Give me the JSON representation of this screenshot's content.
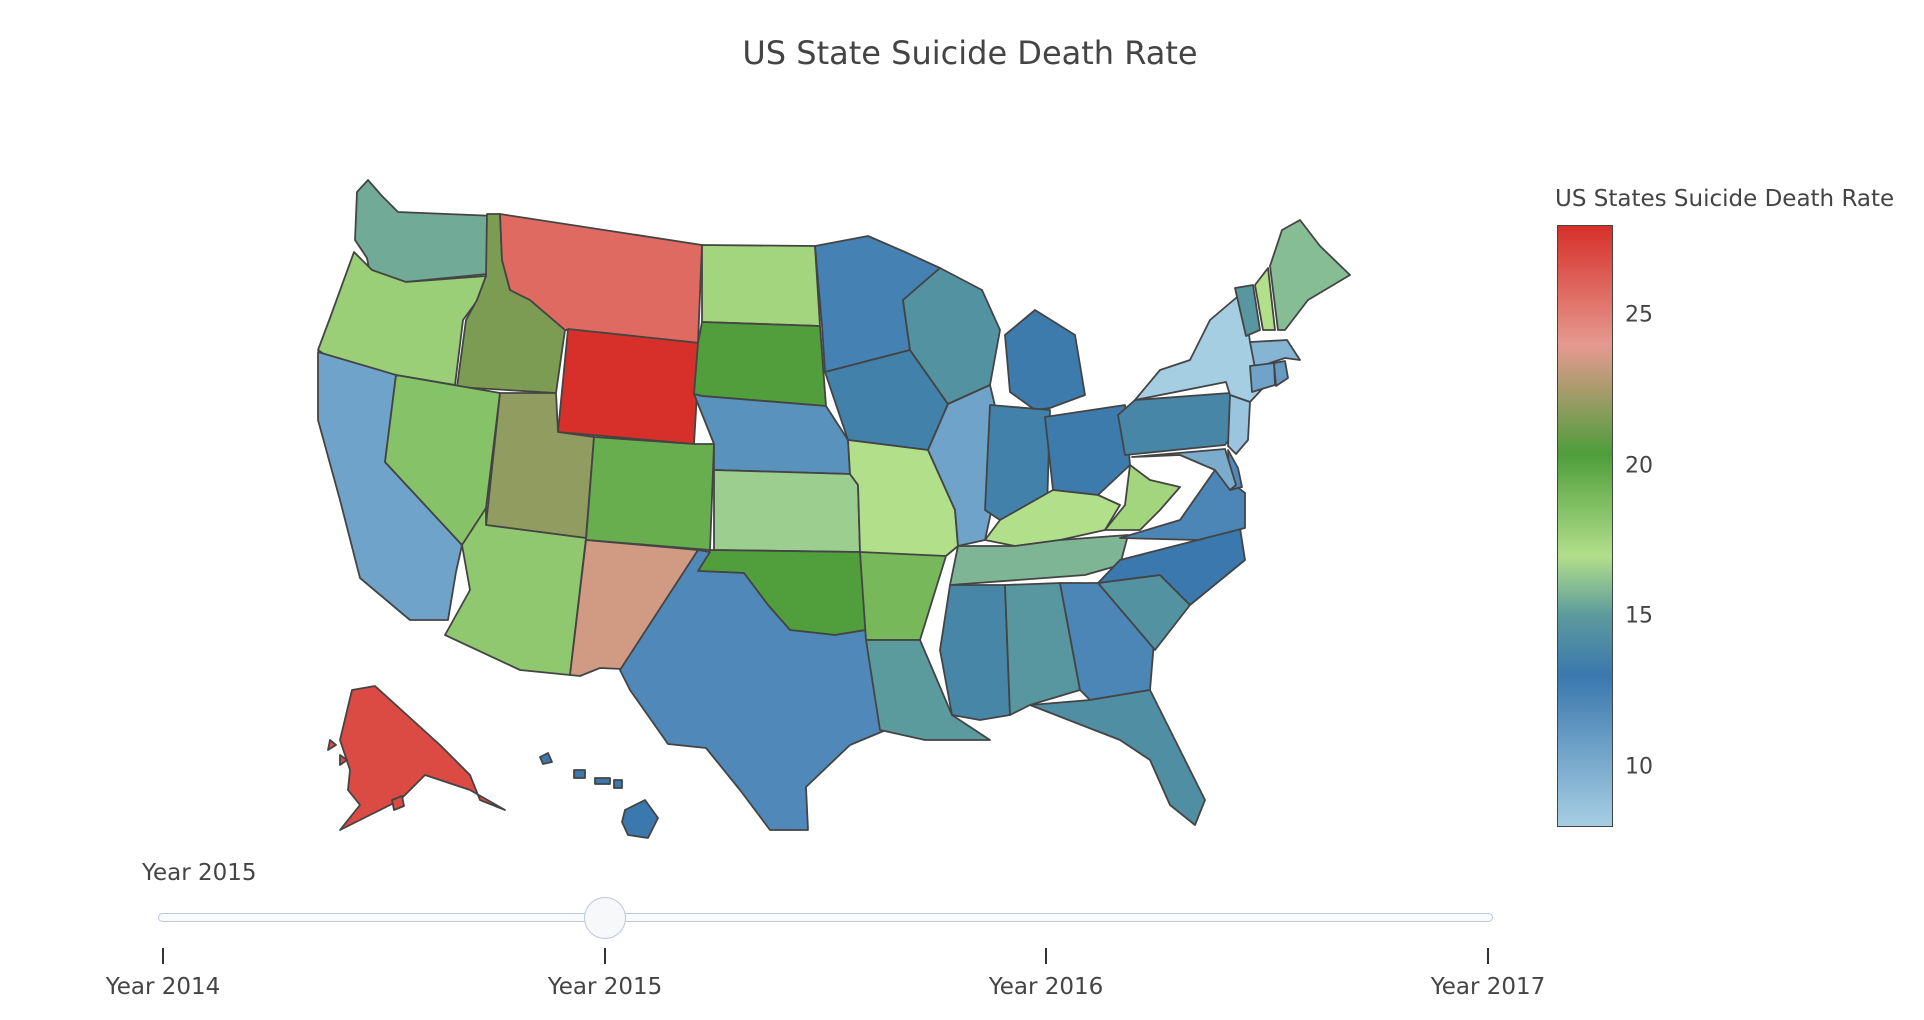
{
  "title": "US State Suicide Death Rate",
  "colorbar": {
    "title": "US States Suicide Death Rate",
    "range": [
      8,
      28
    ],
    "ticks": [
      "10",
      "15",
      "20",
      "25"
    ],
    "colorscale": [
      [
        0.0,
        "#a6cee3"
      ],
      [
        0.25,
        "#3a78ae"
      ],
      [
        0.35,
        "#5b9a9d"
      ],
      [
        0.45,
        "#b2df8a"
      ],
      [
        0.62,
        "#4e9d3a"
      ],
      [
        0.8,
        "#e59a8f"
      ],
      [
        1.0,
        "#d7302a"
      ]
    ]
  },
  "slider": {
    "current_label": "Year 2015",
    "active_index": 1,
    "steps": [
      "Year 2014",
      "Year 2015",
      "Year 2016",
      "Year 2017"
    ]
  },
  "chart_data": {
    "type": "choropleth",
    "title": "US State Suicide Death Rate",
    "year": "Year 2015",
    "states": [
      {
        "state": "WA",
        "value": 15.5
      },
      {
        "state": "OR",
        "value": 17.8
      },
      {
        "state": "CA",
        "value": 10.5
      },
      {
        "state": "ID",
        "value": 21.5
      },
      {
        "state": "NV",
        "value": 18.5
      },
      {
        "state": "MT",
        "value": 25.8
      },
      {
        "state": "WY",
        "value": 28.0
      },
      {
        "state": "UT",
        "value": 22.0
      },
      {
        "state": "AZ",
        "value": 18.2
      },
      {
        "state": "CO",
        "value": 19.5
      },
      {
        "state": "NM",
        "value": 23.5
      },
      {
        "state": "ND",
        "value": 17.5
      },
      {
        "state": "SD",
        "value": 20.5
      },
      {
        "state": "NE",
        "value": 11.5
      },
      {
        "state": "KS",
        "value": 16.5
      },
      {
        "state": "OK",
        "value": 20.3
      },
      {
        "state": "TX",
        "value": 12.0
      },
      {
        "state": "MN",
        "value": 12.5
      },
      {
        "state": "IA",
        "value": 13.5
      },
      {
        "state": "MO",
        "value": 17.0
      },
      {
        "state": "AR",
        "value": 19.0
      },
      {
        "state": "LA",
        "value": 15.0
      },
      {
        "state": "WI",
        "value": 14.5
      },
      {
        "state": "IL",
        "value": 10.5
      },
      {
        "state": "MI",
        "value": 13.2
      },
      {
        "state": "IN",
        "value": 13.5
      },
      {
        "state": "OH",
        "value": 13.2
      },
      {
        "state": "KY",
        "value": 17.0
      },
      {
        "state": "TN",
        "value": 15.8
      },
      {
        "state": "MS",
        "value": 13.8
      },
      {
        "state": "AL",
        "value": 14.8
      },
      {
        "state": "GA",
        "value": 12.2
      },
      {
        "state": "FL",
        "value": 14.3
      },
      {
        "state": "SC",
        "value": 14.5
      },
      {
        "state": "NC",
        "value": 13.0
      },
      {
        "state": "VA",
        "value": 12.2
      },
      {
        "state": "WV",
        "value": 17.5
      },
      {
        "state": "PA",
        "value": 13.8
      },
      {
        "state": "NY",
        "value": 8.0
      },
      {
        "state": "VT",
        "value": 14.8
      },
      {
        "state": "NH",
        "value": 17.0
      },
      {
        "state": "ME",
        "value": 16.0
      },
      {
        "state": "MA",
        "value": 9.5
      },
      {
        "state": "CT",
        "value": 10.5
      },
      {
        "state": "RI",
        "value": 11.0
      },
      {
        "state": "NJ",
        "value": 8.5
      },
      {
        "state": "DE",
        "value": 12.0
      },
      {
        "state": "MD",
        "value": 10.0
      },
      {
        "state": "AK",
        "value": 27.0
      },
      {
        "state": "HI",
        "value": 13.0
      }
    ]
  }
}
